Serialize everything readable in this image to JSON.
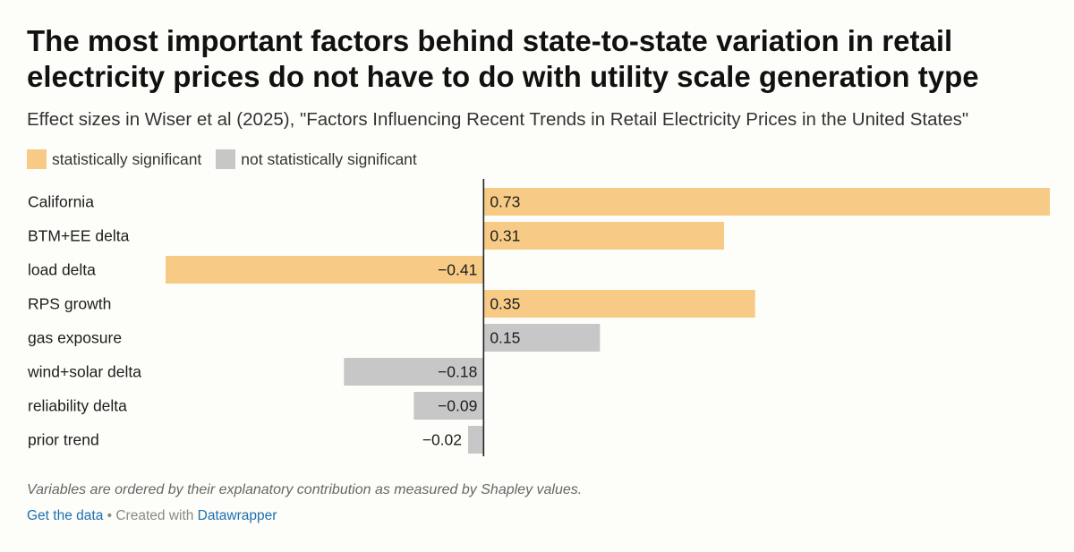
{
  "colors": {
    "significant": "#f7cb85",
    "not_significant": "#c7c7c7",
    "axis": "#222222",
    "link": "#1d6fb0"
  },
  "chart_data": {
    "type": "bar",
    "orientation": "horizontal",
    "title": "The most important factors behind state-to-state variation in retail electricity prices do not have to do with utility scale generation type",
    "subtitle": "Effect sizes in Wiser et al (2025), \"Factors Influencing Recent Trends in Retail Electricity Prices in the United States\"",
    "legend": {
      "position": "top-left",
      "entries": [
        {
          "key": "significant",
          "label": "statistically significant"
        },
        {
          "key": "not_significant",
          "label": "not statistically significant"
        }
      ]
    },
    "categories": [
      "California",
      "BTM+EE delta",
      "load delta",
      "RPS growth",
      "gas exposure",
      "wind+solar delta",
      "reliability delta",
      "prior trend"
    ],
    "values": [
      0.73,
      0.31,
      -0.41,
      0.35,
      0.15,
      -0.18,
      -0.09,
      -0.02
    ],
    "value_labels": [
      "0.73",
      "0.31",
      "−0.41",
      "0.35",
      "0.15",
      "−0.18",
      "−0.09",
      "−0.02"
    ],
    "significance": [
      "significant",
      "significant",
      "significant",
      "significant",
      "not_significant",
      "not_significant",
      "not_significant",
      "not_significant"
    ],
    "xlim": [
      -0.41,
      0.73
    ],
    "grid": false
  },
  "notes": "Variables are ordered by their explanatory contribution as measured by Shapley values.",
  "footer": {
    "get_data": "Get the data",
    "separator": " • Created with ",
    "datawrapper": "Datawrapper"
  }
}
